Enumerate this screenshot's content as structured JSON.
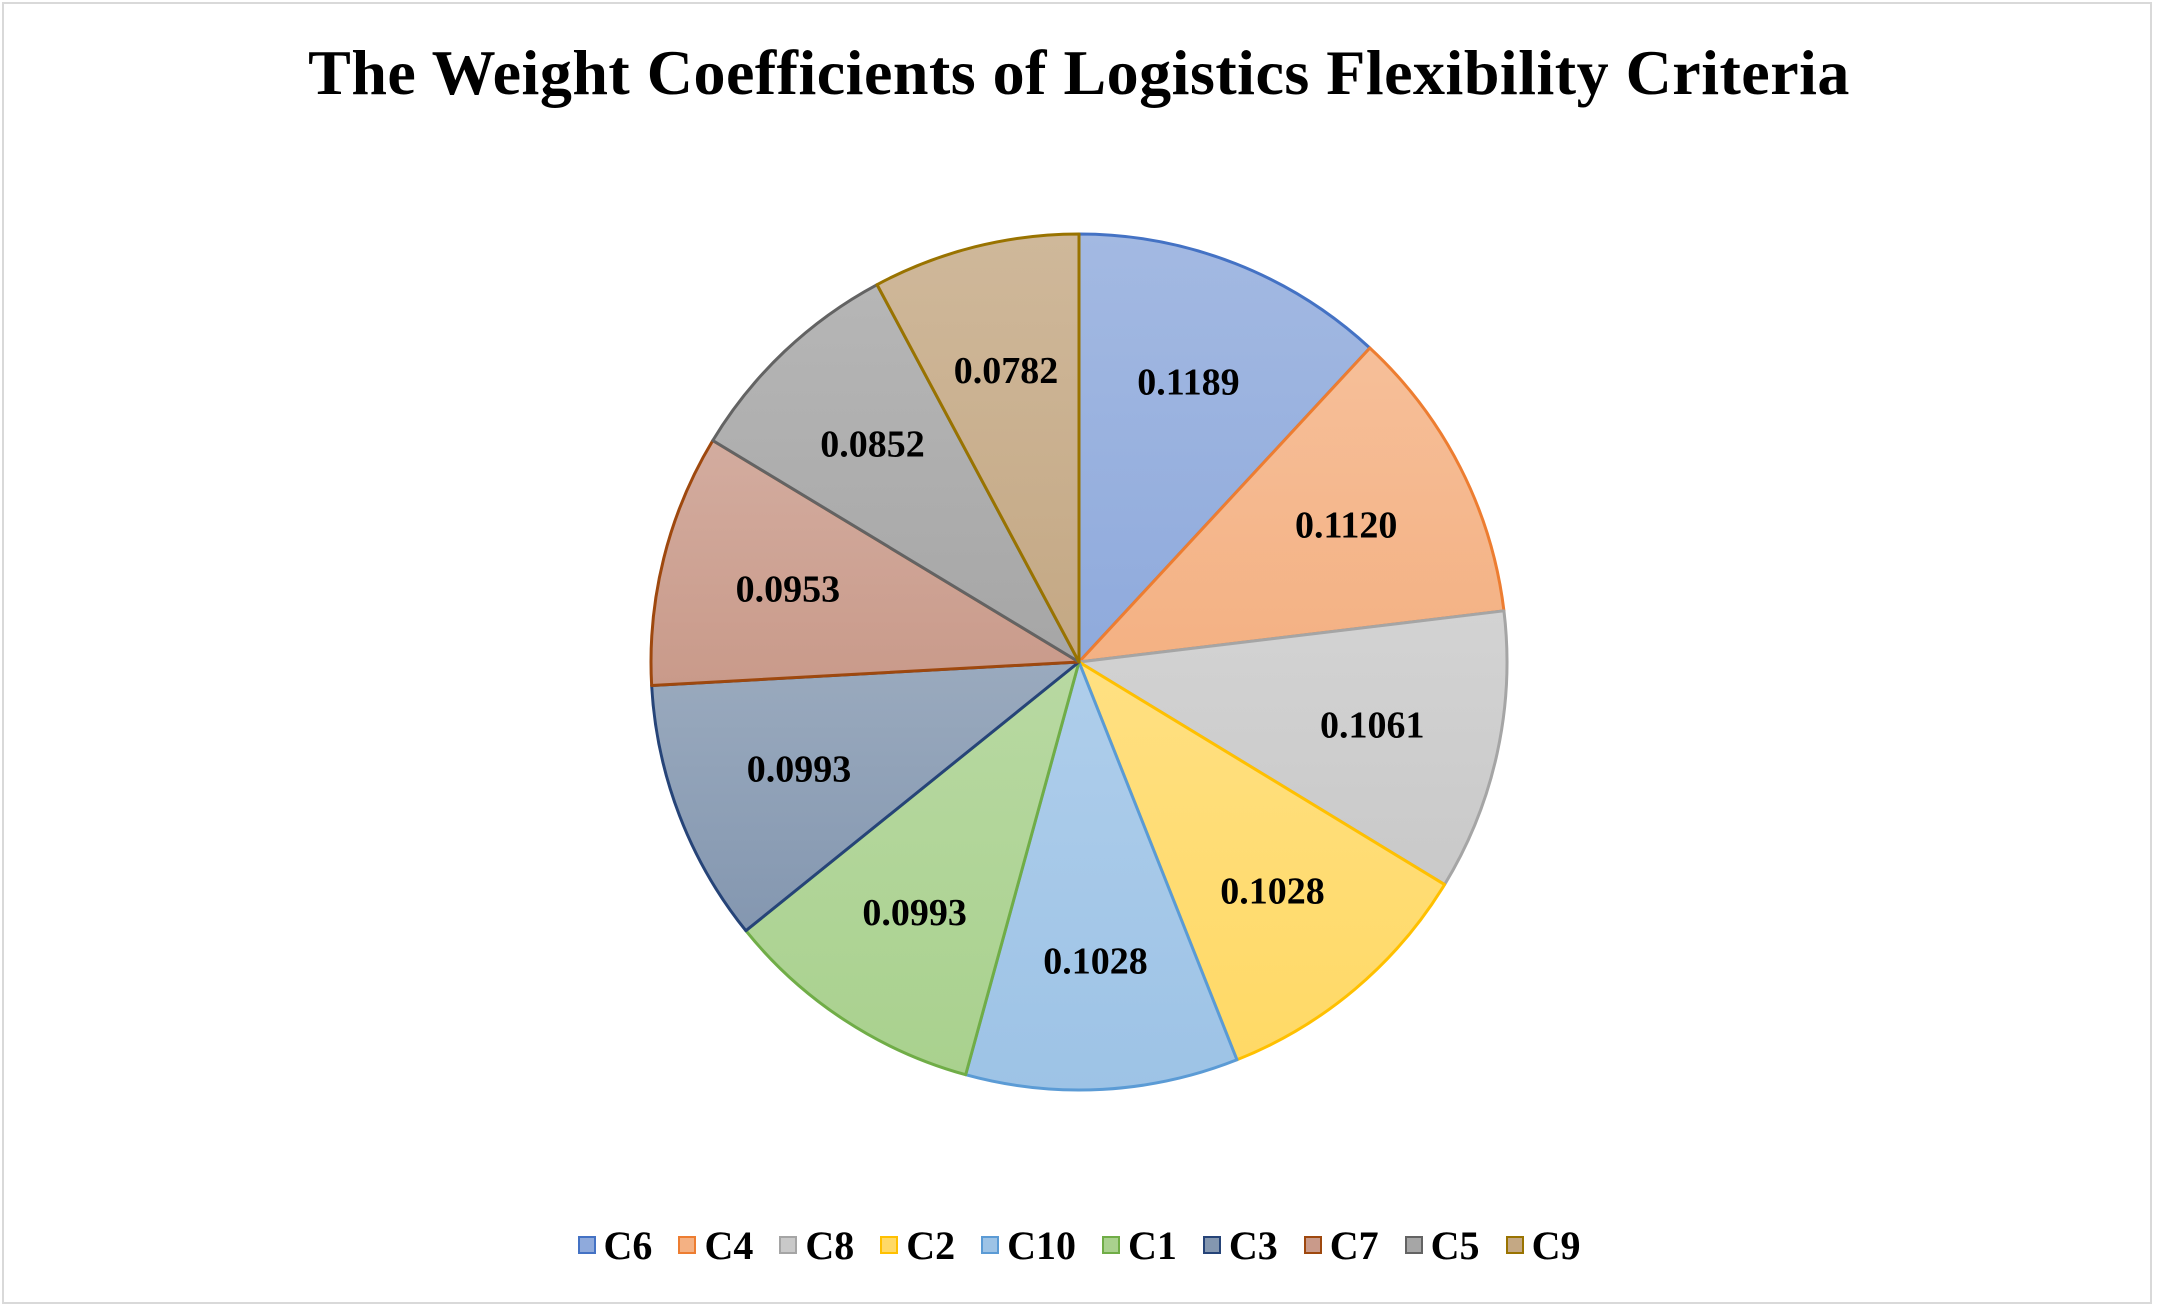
{
  "chart_data": {
    "type": "pie",
    "title": "The Weight Coefficients of Logistics Flexibility Criteria",
    "categories": [
      "C6",
      "C4",
      "C8",
      "C2",
      "C10",
      "C1",
      "C3",
      "C7",
      "C5",
      "C9"
    ],
    "values": [
      0.1189,
      0.112,
      0.1061,
      0.1028,
      0.1028,
      0.0993,
      0.0993,
      0.0953,
      0.0852,
      0.0782
    ],
    "labels": [
      "0.1189",
      "0.1120",
      "0.1061",
      "0.1028",
      "0.1028",
      "0.0993",
      "0.0993",
      "0.0953",
      "0.0852",
      "0.0782"
    ],
    "colors": [
      "#8faadc",
      "#f4b183",
      "#c9c9c9",
      "#ffd966",
      "#9dc3e6",
      "#a9d18e",
      "#8497b0",
      "#c99a8a",
      "#a6a6a6",
      "#c4a884"
    ],
    "edge_colors": [
      "#4472c4",
      "#ed7d31",
      "#a5a5a5",
      "#ffc000",
      "#5b9bd5",
      "#70ad47",
      "#264478",
      "#9e480e",
      "#636363",
      "#997300"
    ],
    "legend_position": "bottom"
  }
}
